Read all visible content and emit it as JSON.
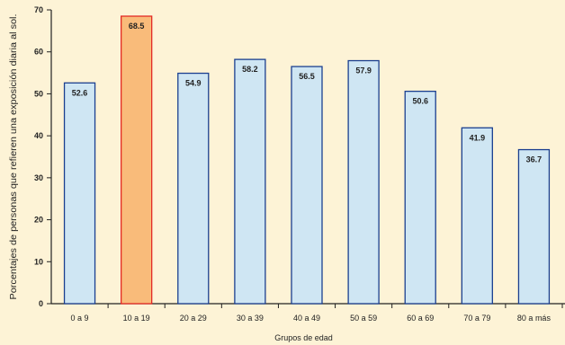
{
  "chart_data": {
    "type": "bar",
    "categories": [
      "0 a 9",
      "10 a 19",
      "20 a 29",
      "30 a 39",
      "40 a 49",
      "50 a 59",
      "60 a 69",
      "70 a 79",
      "80 a más"
    ],
    "values": [
      52.6,
      68.5,
      54.9,
      58.2,
      56.5,
      57.9,
      50.6,
      41.9,
      36.7
    ],
    "value_labels": [
      "52.6",
      "68.5",
      "54.9",
      "58.2",
      "56.5",
      "57.9",
      "50.6",
      "41.9",
      "36.7"
    ],
    "highlight_index": 1,
    "xlabel": "Grupos de edad",
    "ylabel": "Porcentajes de personas que refieren una exposición diaria al sol.",
    "ylim": [
      0,
      70
    ],
    "yticks": [
      0,
      10,
      20,
      30,
      40,
      50,
      60,
      70
    ],
    "grid": false,
    "colors": {
      "background": "#fdf3d6",
      "bar_fill": "#cfe6f3",
      "bar_stroke": "#1b3f8f",
      "highlight_fill": "#f9bb7a",
      "highlight_stroke": "#e32a25",
      "axis": "#222222"
    }
  }
}
